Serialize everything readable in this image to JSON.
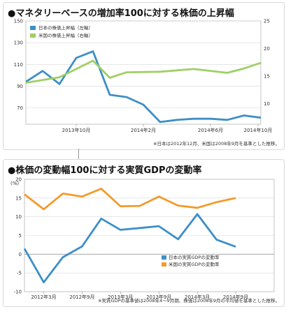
{
  "chart_data": [
    {
      "type": "line",
      "title": "●マネタリーベースの増加率100に対する株価の上昇幅",
      "note": "※日本は2012年12月、米国は2008年9月を基準とした推移。",
      "y_left": {
        "ticks": [
          70,
          90,
          110,
          130,
          150
        ],
        "range": [
          55,
          150
        ]
      },
      "y_right": {
        "ticks": [
          10,
          15,
          20,
          25
        ],
        "range": [
          6.3,
          25
        ]
      },
      "x_range": [
        0,
        14
      ],
      "x_ticks": [
        {
          "pos": 3,
          "label": "2013年10月"
        },
        {
          "pos": 7,
          "label": "2014年2月"
        },
        {
          "pos": 11,
          "label": "2014年6月"
        },
        {
          "pos": 15,
          "label": "2014年10月"
        }
      ],
      "legend_position": "top-left",
      "series": [
        {
          "name": "日本の株価上昇幅（左軸）",
          "axis": "left",
          "color": "#3d8fc7",
          "x": [
            0,
            1,
            2,
            3,
            4,
            5,
            6,
            7,
            8,
            9,
            10,
            11,
            12,
            13,
            14
          ],
          "values": [
            94,
            104,
            92,
            116,
            122,
            82,
            80,
            73,
            57,
            59,
            60,
            60,
            59,
            63,
            61
          ]
        },
        {
          "name": "米国の株価上昇幅（右軸）",
          "axis": "right",
          "color": "#9fcf65",
          "x": [
            0,
            2,
            4,
            5,
            6,
            8,
            10,
            12,
            13,
            14
          ],
          "values": [
            13.8,
            14.8,
            17.8,
            14.7,
            15.7,
            15.8,
            16.3,
            15.6,
            16.4,
            17.4
          ]
        }
      ]
    },
    {
      "type": "line",
      "title": "●株価の変動幅100に対する実質GDPの変動率",
      "note": "※実質GDPの基準値は2008年4～9月期、株価は2008年9月の平均値を基準とした推移。",
      "y_label": "(%)",
      "y": {
        "ticks": [
          -10,
          -5,
          0,
          5,
          10,
          15,
          20
        ],
        "range": [
          -10,
          20
        ]
      },
      "x_range": [
        0,
        13
      ],
      "x_ticks": [
        {
          "pos": 1,
          "label": "2012年3月"
        },
        {
          "pos": 3,
          "label": "2012年9月"
        },
        {
          "pos": 5,
          "label": "2013年3月"
        },
        {
          "pos": 7,
          "label": "2013年9月"
        },
        {
          "pos": 9,
          "label": "2014年3月"
        },
        {
          "pos": 11,
          "label": "2014年9月"
        }
      ],
      "legend_position": "center-right",
      "series": [
        {
          "name": "日本の実質GDPの変動率",
          "color": "#3d8fc7",
          "x": [
            0,
            1,
            2,
            3,
            4,
            5,
            6,
            7,
            8,
            9,
            10,
            11
          ],
          "values": [
            1.5,
            -7.5,
            -0.8,
            2.1,
            9.5,
            6.5,
            7.0,
            7.5,
            4.0,
            10.7,
            3.9,
            2.0
          ]
        },
        {
          "name": "米国の実質GDPの変動率",
          "color": "#f39a2b",
          "x": [
            0,
            1,
            2,
            3,
            4,
            5,
            6,
            7,
            8,
            9,
            10,
            11
          ],
          "values": [
            16.0,
            12.0,
            16.2,
            15.4,
            17.5,
            12.8,
            12.9,
            15.4,
            13.0,
            12.4,
            13.9,
            15.0
          ]
        }
      ]
    }
  ]
}
